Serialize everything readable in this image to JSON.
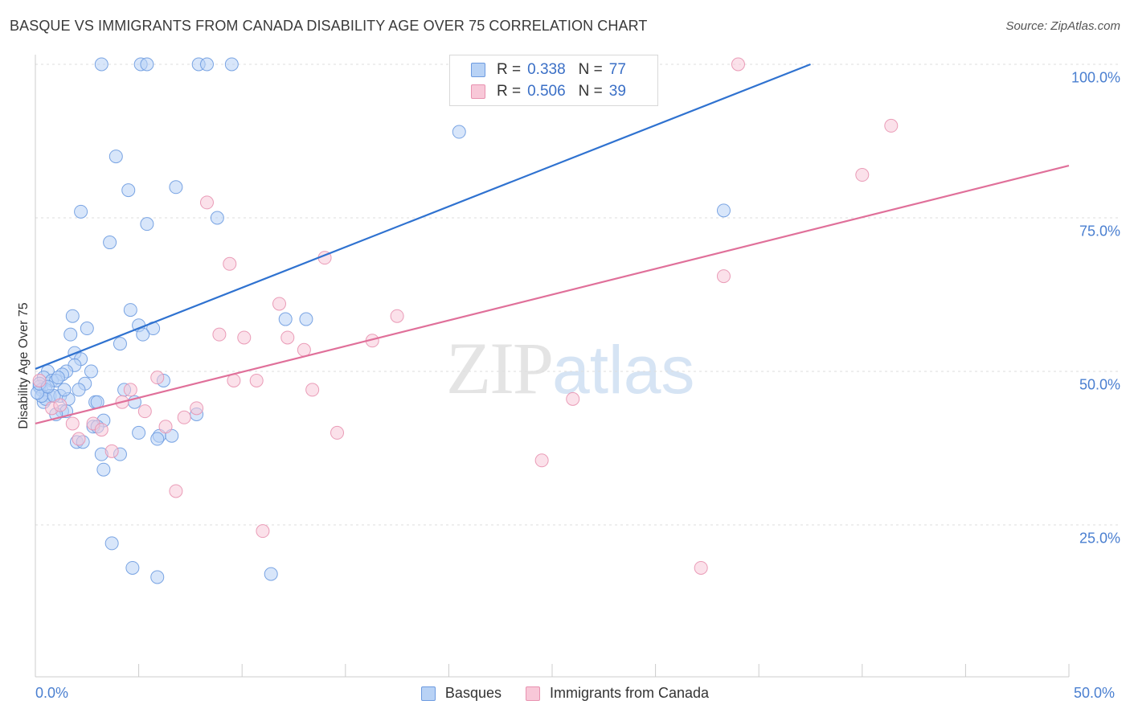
{
  "title": "BASQUE VS IMMIGRANTS FROM CANADA DISABILITY AGE OVER 75 CORRELATION CHART",
  "source": "Source: ZipAtlas.com",
  "watermark": {
    "zip": "ZIP",
    "atlas": "atlas"
  },
  "legend_top": {
    "rows": [
      {
        "r_label": "R =",
        "r_value": "0.338",
        "n_label": "N =",
        "n_value": "77",
        "color": "#6d9be0"
      },
      {
        "r_label": "R =",
        "r_value": "0.506",
        "n_label": "N =",
        "n_value": "39",
        "color": "#e892b0"
      }
    ]
  },
  "legend_bottom": [
    "Basques",
    "Immigrants from Canada"
  ],
  "chart_data": {
    "type": "scatter",
    "title": "BASQUE VS IMMIGRANTS FROM CANADA DISABILITY AGE OVER 75 CORRELATION CHART",
    "xlabel": "",
    "ylabel": "Disability Age Over 75",
    "xlim": [
      0,
      50
    ],
    "ylim": [
      0,
      105
    ],
    "x_tick_labels": [
      "0.0%",
      "50.0%"
    ],
    "y_ticks": [
      25,
      50,
      75,
      100
    ],
    "y_tick_labels": [
      "25.0%",
      "50.0%",
      "75.0%",
      "100.0%"
    ],
    "grid": "horizontal dashed",
    "legend": "bottom-center",
    "series": [
      {
        "name": "Basques",
        "color": "#6d9be0",
        "fill": "#b8d2f5",
        "trend": {
          "x": [
            0,
            37.5
          ],
          "y": [
            50.4,
            100
          ]
        },
        "points": [
          [
            3.2,
            100
          ],
          [
            5.1,
            100
          ],
          [
            5.4,
            100
          ],
          [
            7.9,
            100
          ],
          [
            8.3,
            100
          ],
          [
            9.5,
            100
          ],
          [
            20.5,
            89
          ],
          [
            3.9,
            85
          ],
          [
            4.5,
            79.5
          ],
          [
            6.8,
            80
          ],
          [
            2.2,
            76
          ],
          [
            8.8,
            75
          ],
          [
            33.3,
            76.2
          ],
          [
            5.4,
            74
          ],
          [
            3.6,
            71
          ],
          [
            4.6,
            60
          ],
          [
            1.8,
            59
          ],
          [
            12.1,
            58.5
          ],
          [
            13.1,
            58.5
          ],
          [
            2.5,
            57
          ],
          [
            5.0,
            57.5
          ],
          [
            5.7,
            57
          ],
          [
            1.7,
            56
          ],
          [
            5.2,
            56
          ],
          [
            4.1,
            54.5
          ],
          [
            1.9,
            53
          ],
          [
            2.2,
            52
          ],
          [
            1.9,
            51
          ],
          [
            2.7,
            50
          ],
          [
            0.6,
            50
          ],
          [
            1.5,
            50
          ],
          [
            1.3,
            49.5
          ],
          [
            0.4,
            49
          ],
          [
            0.8,
            48.5
          ],
          [
            1.0,
            48.5
          ],
          [
            6.2,
            48.5
          ],
          [
            2.4,
            48
          ],
          [
            0.2,
            47.5
          ],
          [
            0.3,
            47
          ],
          [
            0.5,
            47
          ],
          [
            2.1,
            47
          ],
          [
            4.3,
            47
          ],
          [
            0.7,
            46
          ],
          [
            1.2,
            46
          ],
          [
            1.6,
            45.5
          ],
          [
            0.4,
            45
          ],
          [
            0.5,
            45.5
          ],
          [
            0.3,
            46
          ],
          [
            2.9,
            45
          ],
          [
            3.0,
            45
          ],
          [
            4.8,
            45
          ],
          [
            1.3,
            43.5
          ],
          [
            1.5,
            43.5
          ],
          [
            1.0,
            43
          ],
          [
            7.8,
            43
          ],
          [
            3.3,
            42
          ],
          [
            2.8,
            41
          ],
          [
            3.0,
            41
          ],
          [
            5.0,
            40
          ],
          [
            6.0,
            39.5
          ],
          [
            6.6,
            39.5
          ],
          [
            5.9,
            39
          ],
          [
            2.0,
            38.5
          ],
          [
            2.3,
            38.5
          ],
          [
            3.2,
            36.5
          ],
          [
            4.1,
            36.5
          ],
          [
            3.3,
            34
          ],
          [
            3.7,
            22
          ],
          [
            4.7,
            18
          ],
          [
            5.9,
            16.5
          ],
          [
            11.4,
            17
          ],
          [
            0.1,
            46.5
          ],
          [
            0.2,
            48
          ],
          [
            0.9,
            46
          ],
          [
            1.1,
            49
          ],
          [
            0.6,
            47.5
          ],
          [
            1.4,
            47
          ]
        ]
      },
      {
        "name": "Immigrants from Canada",
        "color": "#e892b0",
        "fill": "#f8c8d8",
        "trend": {
          "x": [
            0,
            50
          ],
          "y": [
            41.5,
            83.5
          ]
        },
        "points": [
          [
            20.5,
            100
          ],
          [
            34.0,
            100
          ],
          [
            41.4,
            90
          ],
          [
            40.0,
            82
          ],
          [
            8.3,
            77.5
          ],
          [
            14.0,
            68.5
          ],
          [
            9.4,
            67.5
          ],
          [
            33.3,
            65.5
          ],
          [
            11.8,
            61
          ],
          [
            17.5,
            59
          ],
          [
            8.9,
            56
          ],
          [
            10.1,
            55.5
          ],
          [
            12.2,
            55.5
          ],
          [
            16.3,
            55
          ],
          [
            13.0,
            53.5
          ],
          [
            5.9,
            49
          ],
          [
            9.6,
            48.5
          ],
          [
            10.7,
            48.5
          ],
          [
            13.4,
            47
          ],
          [
            4.6,
            47
          ],
          [
            26.0,
            45.5
          ],
          [
            4.2,
            45
          ],
          [
            0.8,
            44
          ],
          [
            7.8,
            44
          ],
          [
            5.3,
            43.5
          ],
          [
            7.2,
            42.5
          ],
          [
            1.8,
            41.5
          ],
          [
            2.8,
            41.5
          ],
          [
            6.3,
            41
          ],
          [
            3.2,
            40.5
          ],
          [
            14.6,
            40
          ],
          [
            2.1,
            39
          ],
          [
            3.7,
            37
          ],
          [
            24.5,
            35.5
          ],
          [
            6.8,
            30.5
          ],
          [
            11.0,
            24
          ],
          [
            32.2,
            18
          ],
          [
            0.2,
            48.5
          ],
          [
            1.2,
            44.5
          ]
        ]
      }
    ]
  }
}
